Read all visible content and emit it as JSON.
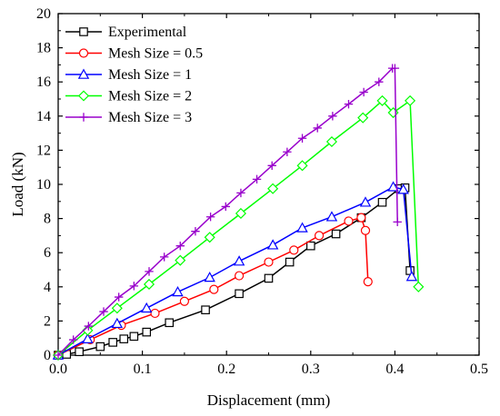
{
  "chart_data": {
    "type": "line",
    "xlabel": "Displacement (mm)",
    "ylabel": "Load (kN)",
    "xlim": [
      0.0,
      0.5
    ],
    "ylim": [
      0,
      20
    ],
    "x_ticks": [
      "0.0",
      "0.1",
      "0.2",
      "0.3",
      "0.4",
      "0.5"
    ],
    "y_ticks": [
      "0",
      "2",
      "4",
      "6",
      "8",
      "10",
      "12",
      "14",
      "16",
      "18",
      "20"
    ],
    "grid": false,
    "legend_position": "top-left",
    "series": [
      {
        "name": "Experimental",
        "color": "#000000",
        "marker": "square",
        "points": [
          [
            0.0,
            0.0
          ],
          [
            0.01,
            0.05
          ],
          [
            0.025,
            0.2
          ],
          [
            0.05,
            0.5
          ],
          [
            0.065,
            0.75
          ],
          [
            0.078,
            0.95
          ],
          [
            0.09,
            1.1
          ],
          [
            0.105,
            1.35
          ],
          [
            0.132,
            1.9
          ],
          [
            0.175,
            2.65
          ],
          [
            0.215,
            3.6
          ],
          [
            0.25,
            4.5
          ],
          [
            0.275,
            5.45
          ],
          [
            0.3,
            6.4
          ],
          [
            0.33,
            7.1
          ],
          [
            0.36,
            8.05
          ],
          [
            0.385,
            8.95
          ],
          [
            0.405,
            9.75
          ],
          [
            0.412,
            9.8
          ],
          [
            0.418,
            4.95
          ]
        ]
      },
      {
        "name": "Mesh Size = 0.5",
        "color": "#ff0000",
        "marker": "circle",
        "points": [
          [
            0.0,
            0.0
          ],
          [
            0.038,
            0.9
          ],
          [
            0.075,
            1.75
          ],
          [
            0.115,
            2.45
          ],
          [
            0.15,
            3.15
          ],
          [
            0.185,
            3.85
          ],
          [
            0.215,
            4.65
          ],
          [
            0.25,
            5.45
          ],
          [
            0.28,
            6.15
          ],
          [
            0.31,
            7.0
          ],
          [
            0.345,
            7.85
          ],
          [
            0.36,
            8.05
          ],
          [
            0.365,
            7.3
          ],
          [
            0.368,
            4.3
          ]
        ]
      },
      {
        "name": "Mesh Size = 1",
        "color": "#0000ff",
        "marker": "triangle",
        "points": [
          [
            0.0,
            0.0
          ],
          [
            0.035,
            0.95
          ],
          [
            0.07,
            1.85
          ],
          [
            0.105,
            2.75
          ],
          [
            0.142,
            3.7
          ],
          [
            0.18,
            4.55
          ],
          [
            0.215,
            5.5
          ],
          [
            0.255,
            6.45
          ],
          [
            0.29,
            7.45
          ],
          [
            0.325,
            8.1
          ],
          [
            0.365,
            8.95
          ],
          [
            0.398,
            9.85
          ],
          [
            0.41,
            9.7
          ],
          [
            0.42,
            4.6
          ]
        ]
      },
      {
        "name": "Mesh Size = 2",
        "color": "#00ff00",
        "marker": "diamond",
        "points": [
          [
            0.0,
            0.0
          ],
          [
            0.035,
            1.45
          ],
          [
            0.07,
            2.75
          ],
          [
            0.108,
            4.15
          ],
          [
            0.145,
            5.55
          ],
          [
            0.18,
            6.9
          ],
          [
            0.217,
            8.3
          ],
          [
            0.255,
            9.75
          ],
          [
            0.29,
            11.1
          ],
          [
            0.325,
            12.5
          ],
          [
            0.362,
            13.9
          ],
          [
            0.385,
            14.9
          ],
          [
            0.398,
            14.2
          ],
          [
            0.418,
            14.9
          ],
          [
            0.428,
            4.0
          ]
        ]
      },
      {
        "name": "Mesh Size = 3",
        "color": "#9900cc",
        "marker": "plus",
        "points": [
          [
            0.0,
            0.0
          ],
          [
            0.018,
            0.9
          ],
          [
            0.036,
            1.7
          ],
          [
            0.054,
            2.55
          ],
          [
            0.072,
            3.4
          ],
          [
            0.09,
            4.05
          ],
          [
            0.108,
            4.9
          ],
          [
            0.126,
            5.75
          ],
          [
            0.145,
            6.4
          ],
          [
            0.163,
            7.25
          ],
          [
            0.181,
            8.1
          ],
          [
            0.199,
            8.7
          ],
          [
            0.217,
            9.5
          ],
          [
            0.236,
            10.3
          ],
          [
            0.254,
            11.1
          ],
          [
            0.272,
            11.9
          ],
          [
            0.29,
            12.7
          ],
          [
            0.308,
            13.3
          ],
          [
            0.326,
            14.0
          ],
          [
            0.345,
            14.7
          ],
          [
            0.363,
            15.4
          ],
          [
            0.381,
            16.0
          ],
          [
            0.397,
            16.8
          ],
          [
            0.4,
            16.8
          ],
          [
            0.403,
            7.8
          ]
        ]
      }
    ]
  }
}
